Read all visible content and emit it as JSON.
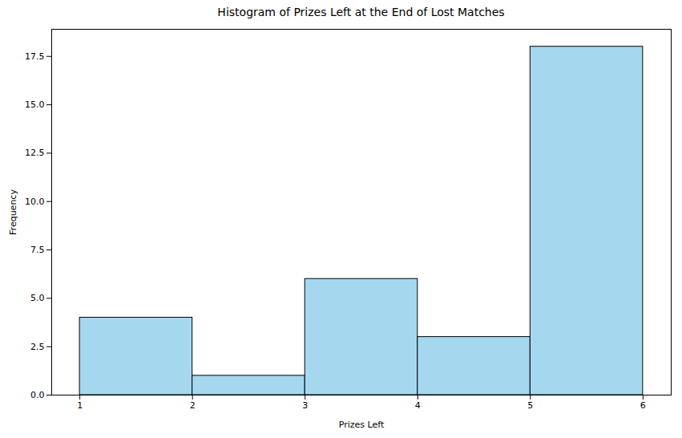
{
  "chart_data": {
    "type": "histogram",
    "title": "Histogram of Prizes Left at the End of Lost Matches",
    "x_label": "Prizes Left",
    "y_label": "Frequency",
    "bins": [
      1,
      2,
      3,
      4,
      5,
      6
    ],
    "values": [
      4,
      1,
      6,
      3,
      18
    ],
    "color": "#a5d8ef",
    "xlim": [
      0.75,
      6.25
    ],
    "xticks": [
      1,
      2,
      3,
      4,
      5,
      6
    ],
    "ylim": [
      0,
      18.9
    ],
    "yticks": [
      {
        "value": 0,
        "label": "0.0"
      },
      {
        "value": 2.5,
        "label": "2.5"
      },
      {
        "value": 5,
        "label": "5.0"
      },
      {
        "value": 7.5,
        "label": "7.5"
      },
      {
        "value": 10,
        "label": "10.0"
      },
      {
        "value": 12.5,
        "label": "12.5"
      },
      {
        "value": 15,
        "label": "15.0"
      },
      {
        "value": 17.5,
        "label": "17.5"
      }
    ],
    "grid": false
  }
}
